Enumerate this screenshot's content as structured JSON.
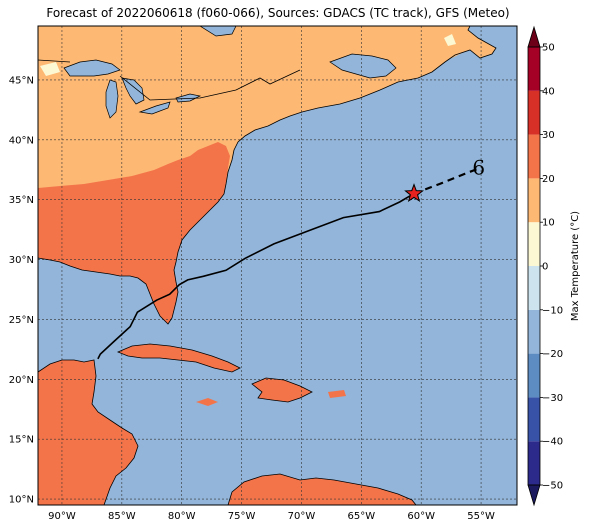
{
  "title": "Forecast of 2022060618 (f060-066), Sources: GDACS (TC track), GFS (Meteo)",
  "map": {
    "lon_range": [
      -92,
      -52
    ],
    "lat_range": [
      9.5,
      49.5
    ],
    "lon_ticks": [
      {
        "value": -90,
        "label": "90°W"
      },
      {
        "value": -85,
        "label": "85°W"
      },
      {
        "value": -80,
        "label": "80°W"
      },
      {
        "value": -75,
        "label": "75°W"
      },
      {
        "value": -70,
        "label": "70°W"
      },
      {
        "value": -65,
        "label": "65°W"
      },
      {
        "value": -60,
        "label": "60°W"
      },
      {
        "value": -55,
        "label": "55°W"
      }
    ],
    "lat_ticks": [
      {
        "value": 10,
        "label": "10°N"
      },
      {
        "value": 15,
        "label": "15°N"
      },
      {
        "value": 20,
        "label": "20°N"
      },
      {
        "value": 25,
        "label": "25°N"
      },
      {
        "value": 30,
        "label": "30°N"
      },
      {
        "value": 35,
        "label": "35°N"
      },
      {
        "value": 40,
        "label": "40°N"
      },
      {
        "value": 45,
        "label": "45°N"
      }
    ],
    "grid": true,
    "ocean_color": "#92b5d9",
    "land_color": "#fdb974",
    "warm_color": "#f4744a"
  },
  "track": {
    "past": [
      [
        -87.0,
        21.7
      ],
      [
        -86.8,
        22.1
      ],
      [
        -85.6,
        23.2
      ],
      [
        -84.3,
        24.4
      ],
      [
        -83.7,
        25.6
      ],
      [
        -82.1,
        26.6
      ],
      [
        -81.0,
        27.1
      ],
      [
        -80.2,
        27.9
      ],
      [
        -79.5,
        28.3
      ],
      [
        -78.2,
        28.6
      ],
      [
        -76.3,
        29.1
      ],
      [
        -74.7,
        30.1
      ],
      [
        -72.3,
        31.3
      ],
      [
        -69.4,
        32.4
      ],
      [
        -66.5,
        33.5
      ],
      [
        -63.5,
        34.0
      ],
      [
        -61.8,
        34.8
      ],
      [
        -60.6,
        35.5
      ]
    ],
    "forecast": [
      [
        -60.6,
        35.5
      ],
      [
        -58.5,
        36.3
      ],
      [
        -56.0,
        37.3
      ],
      [
        -55.2,
        37.6
      ]
    ],
    "current": [
      -60.6,
      35.5
    ],
    "storm_symbol": "6"
  },
  "colorbar": {
    "label": "Max Temperature (°C)",
    "min": -50,
    "max": 50,
    "ticks": [
      {
        "value": 50,
        "label": "50"
      },
      {
        "value": 40,
        "label": "40"
      },
      {
        "value": 30,
        "label": "30"
      },
      {
        "value": 20,
        "label": "20"
      },
      {
        "value": 10,
        "label": "10"
      },
      {
        "value": 0,
        "label": "0"
      },
      {
        "value": -10,
        "label": "−10"
      },
      {
        "value": -20,
        "label": "−20"
      },
      {
        "value": -30,
        "label": "−30"
      },
      {
        "value": -40,
        "label": "−40"
      },
      {
        "value": -50,
        "label": "−50"
      }
    ],
    "bins": [
      {
        "from": -50,
        "to": -40,
        "color": "#2c2a8a"
      },
      {
        "from": -40,
        "to": -30,
        "color": "#3852a8"
      },
      {
        "from": -30,
        "to": -20,
        "color": "#5d8cc2"
      },
      {
        "from": -20,
        "to": -10,
        "color": "#92b5d9"
      },
      {
        "from": -10,
        "to": 0,
        "color": "#cde4ef"
      },
      {
        "from": 0,
        "to": 10,
        "color": "#fdf8d4"
      },
      {
        "from": 10,
        "to": 20,
        "color": "#fdb974"
      },
      {
        "from": 20,
        "to": 30,
        "color": "#f4744a"
      },
      {
        "from": 30,
        "to": 40,
        "color": "#d73027"
      },
      {
        "from": 40,
        "to": 50,
        "color": "#a50026"
      }
    ],
    "under_color": "#1b1a5e",
    "over_color": "#6b0018"
  }
}
